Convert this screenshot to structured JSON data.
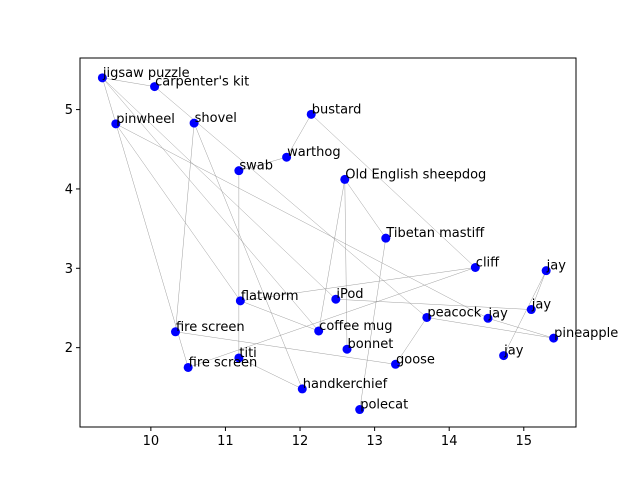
{
  "chart_data": {
    "type": "scatter",
    "title": "",
    "xlabel": "",
    "ylabel": "",
    "xlim": [
      9.05,
      15.7
    ],
    "ylim": [
      1.0,
      5.65
    ],
    "xticks": [
      10,
      11,
      12,
      13,
      14,
      15
    ],
    "yticks": [
      2,
      3,
      4,
      5
    ],
    "grid": false,
    "colors": {
      "point": "#0000ff",
      "edge": "#888888"
    },
    "points": [
      {
        "label": "jigsaw puzzle",
        "x": 9.35,
        "y": 5.4
      },
      {
        "label": "carpenter's kit",
        "x": 10.05,
        "y": 5.29
      },
      {
        "label": "pinwheel",
        "x": 9.53,
        "y": 4.82
      },
      {
        "label": "shovel",
        "x": 10.58,
        "y": 4.83
      },
      {
        "label": "bustard",
        "x": 12.15,
        "y": 4.94
      },
      {
        "label": "warthog",
        "x": 11.82,
        "y": 4.4
      },
      {
        "label": "swab",
        "x": 11.18,
        "y": 4.23
      },
      {
        "label": "Old English sheepdog",
        "x": 12.6,
        "y": 4.12
      },
      {
        "label": "Tibetan mastiff",
        "x": 13.15,
        "y": 3.38
      },
      {
        "label": "cliff",
        "x": 14.35,
        "y": 3.01
      },
      {
        "label": "jay",
        "x": 15.3,
        "y": 2.97
      },
      {
        "label": "jay",
        "x": 15.1,
        "y": 2.48
      },
      {
        "label": "flatworm",
        "x": 11.2,
        "y": 2.59
      },
      {
        "label": "iPod",
        "x": 12.48,
        "y": 2.61
      },
      {
        "label": "peacock",
        "x": 13.7,
        "y": 2.38
      },
      {
        "label": "jay",
        "x": 14.52,
        "y": 2.37
      },
      {
        "label": "pineapple",
        "x": 15.4,
        "y": 2.12
      },
      {
        "label": "fire screen",
        "x": 10.33,
        "y": 2.2
      },
      {
        "label": "coffee mug",
        "x": 12.25,
        "y": 2.21
      },
      {
        "label": "bonnet",
        "x": 12.63,
        "y": 1.98
      },
      {
        "label": "jay",
        "x": 14.73,
        "y": 1.9
      },
      {
        "label": "titi",
        "x": 11.18,
        "y": 1.87
      },
      {
        "label": "goose",
        "x": 13.28,
        "y": 1.79
      },
      {
        "label": "fire screen",
        "x": 10.5,
        "y": 1.75
      },
      {
        "label": "handkerchief",
        "x": 12.03,
        "y": 1.48
      },
      {
        "label": "polecat",
        "x": 12.8,
        "y": 1.22
      }
    ],
    "edges": [
      [
        0,
        1
      ],
      [
        0,
        13
      ],
      [
        0,
        18
      ],
      [
        0,
        23
      ],
      [
        1,
        14
      ],
      [
        2,
        12
      ],
      [
        2,
        15
      ],
      [
        3,
        17
      ],
      [
        3,
        24
      ],
      [
        4,
        5
      ],
      [
        4,
        9
      ],
      [
        5,
        6
      ],
      [
        6,
        21
      ],
      [
        7,
        19
      ],
      [
        7,
        8
      ],
      [
        7,
        18
      ],
      [
        8,
        25
      ],
      [
        9,
        12
      ],
      [
        9,
        23
      ],
      [
        10,
        11
      ],
      [
        10,
        20
      ],
      [
        11,
        13
      ],
      [
        12,
        18
      ],
      [
        14,
        22
      ],
      [
        14,
        16
      ],
      [
        15,
        16
      ],
      [
        17,
        22
      ],
      [
        21,
        24
      ]
    ]
  }
}
